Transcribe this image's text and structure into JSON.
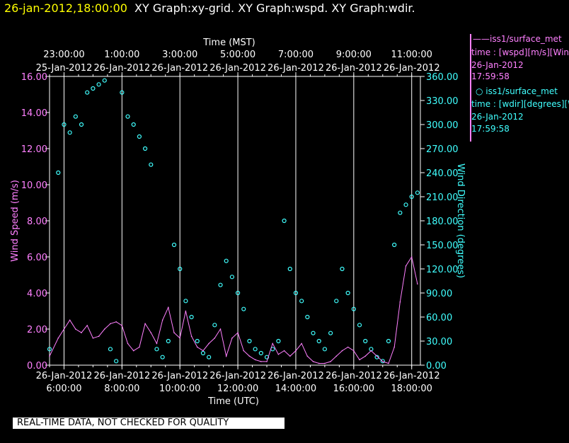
{
  "header": {
    "datetime": "26-jan-2012,18:00:00",
    "graphs": "XY Graph:xy-grid.  XY Graph:wspd.  XY Graph:wdir."
  },
  "legend": {
    "wspd": {
      "name": "iss1/surface_met",
      "line2": "time : [wspd][m/s][Wind",
      "line3": "26-Jan-2012",
      "line4": "17:59:58"
    },
    "wdir": {
      "name": "iss1/surface_met",
      "line2": "time : [wdir][degrees][W",
      "line3": "26-Jan-2012",
      "line4": "17:59:58"
    }
  },
  "warning": "REAL-TIME DATA, NOT CHECKED FOR QUALITY",
  "colors": {
    "wspd": "#ff80ff",
    "wdir": "#40ffff",
    "axes": "#ffffff",
    "date": "#ffff00"
  },
  "chart_data": {
    "type": "line",
    "top_axis_title": "Time (MST)",
    "xlabel": "Time (UTC)",
    "ylabel": "Wind Speed (m/s)",
    "y2label": "Wind Direction (degrees)",
    "xlim_utc_hours": [
      5.5,
      18.3
    ],
    "ylim": [
      0,
      16
    ],
    "y2lim": [
      0,
      360
    ],
    "grid": "vertical",
    "x_ticks_utc": [
      {
        "hour": 6,
        "date": "26-Jan-2012",
        "time": "6:00:00"
      },
      {
        "hour": 8,
        "date": "26-Jan-2012",
        "time": "8:00:00"
      },
      {
        "hour": 10,
        "date": "26-Jan-2012",
        "time": "10:00:00"
      },
      {
        "hour": 12,
        "date": "26-Jan-2012",
        "time": "12:00:00"
      },
      {
        "hour": 14,
        "date": "26-Jan-2012",
        "time": "14:00:00"
      },
      {
        "hour": 16,
        "date": "26-Jan-2012",
        "time": "16:00:00"
      },
      {
        "hour": 18,
        "date": "26-Jan-2012",
        "time": "18:00:00"
      }
    ],
    "x_ticks_mst": [
      {
        "hour": 6,
        "date": "25-Jan-2012",
        "time": "23:00:00"
      },
      {
        "hour": 8,
        "date": "26-Jan-2012",
        "time": "1:00:00"
      },
      {
        "hour": 10,
        "date": "26-Jan-2012",
        "time": "3:00:00"
      },
      {
        "hour": 12,
        "date": "26-Jan-2012",
        "time": "5:00:00"
      },
      {
        "hour": 14,
        "date": "26-Jan-2012",
        "time": "7:00:00"
      },
      {
        "hour": 16,
        "date": "26-Jan-2012",
        "time": "9:00:00"
      },
      {
        "hour": 18,
        "date": "26-Jan-2012",
        "time": "11:00:00"
      }
    ],
    "y_ticks": [
      "0.00",
      "2.00",
      "4.00",
      "6.00",
      "8.00",
      "10.00",
      "12.00",
      "14.00",
      "16.00"
    ],
    "y2_ticks": [
      "0.00",
      "30.00",
      "60.00",
      "90.00",
      "120.00",
      "150.00",
      "180.00",
      "210.00",
      "240.00",
      "270.00",
      "300.00",
      "330.00",
      "360.00"
    ],
    "series": [
      {
        "name": "iss1/surface_met",
        "variable": "wspd",
        "axis": "left",
        "x": [
          5.5,
          5.8,
          6.0,
          6.2,
          6.4,
          6.6,
          6.8,
          7.0,
          7.2,
          7.4,
          7.6,
          7.8,
          8.0,
          8.2,
          8.4,
          8.6,
          8.8,
          9.0,
          9.2,
          9.4,
          9.6,
          9.8,
          10.0,
          10.2,
          10.4,
          10.6,
          10.8,
          11.0,
          11.2,
          11.4,
          11.6,
          11.8,
          12.0,
          12.2,
          12.4,
          12.6,
          12.8,
          13.0,
          13.2,
          13.4,
          13.6,
          13.8,
          14.0,
          14.2,
          14.4,
          14.6,
          14.8,
          15.0,
          15.2,
          15.4,
          15.6,
          15.8,
          16.0,
          16.2,
          16.4,
          16.6,
          16.8,
          17.0,
          17.2,
          17.4,
          17.6,
          17.8,
          18.0,
          18.2
        ],
        "y": [
          0.5,
          1.5,
          2.0,
          2.5,
          2.0,
          1.8,
          2.2,
          1.5,
          1.6,
          2.0,
          2.3,
          2.4,
          2.2,
          1.2,
          0.8,
          1.0,
          2.3,
          1.8,
          1.2,
          2.5,
          3.2,
          1.8,
          1.5,
          3.0,
          1.6,
          1.0,
          0.8,
          1.2,
          1.5,
          2.0,
          0.5,
          1.5,
          1.8,
          0.8,
          0.5,
          0.3,
          0.2,
          0.2,
          1.2,
          0.6,
          0.8,
          0.5,
          0.8,
          1.2,
          0.5,
          0.2,
          0.1,
          0.1,
          0.2,
          0.5,
          0.8,
          1.0,
          0.8,
          0.3,
          0.5,
          0.8,
          0.5,
          0.2,
          0.1,
          1.0,
          3.5,
          5.5,
          6.0,
          4.5
        ]
      },
      {
        "name": "iss1/surface_met",
        "variable": "wdir",
        "axis": "right",
        "x": [
          5.5,
          5.8,
          6.0,
          6.2,
          6.4,
          6.6,
          6.8,
          7.0,
          7.2,
          7.4,
          7.6,
          7.8,
          8.0,
          8.2,
          8.4,
          8.6,
          8.8,
          9.0,
          9.2,
          9.4,
          9.6,
          9.8,
          10.0,
          10.2,
          10.4,
          10.6,
          10.8,
          11.0,
          11.2,
          11.4,
          11.6,
          11.8,
          12.0,
          12.2,
          12.4,
          12.6,
          12.8,
          13.0,
          13.2,
          13.4,
          13.6,
          13.8,
          14.0,
          14.2,
          14.4,
          14.6,
          14.8,
          15.0,
          15.2,
          15.4,
          15.6,
          15.8,
          16.0,
          16.2,
          16.4,
          16.6,
          16.8,
          17.0,
          17.2,
          17.4,
          17.6,
          17.8,
          18.0,
          18.2
        ],
        "y": [
          20,
          240,
          300,
          290,
          310,
          300,
          340,
          345,
          350,
          355,
          20,
          5,
          340,
          310,
          300,
          285,
          270,
          250,
          20,
          10,
          30,
          150,
          120,
          80,
          60,
          30,
          15,
          10,
          50,
          100,
          130,
          110,
          90,
          70,
          30,
          20,
          15,
          10,
          20,
          30,
          180,
          120,
          90,
          80,
          60,
          40,
          30,
          20,
          40,
          80,
          120,
          90,
          70,
          50,
          30,
          20,
          10,
          5,
          30,
          150,
          190,
          200,
          210,
          215
        ]
      }
    ]
  }
}
